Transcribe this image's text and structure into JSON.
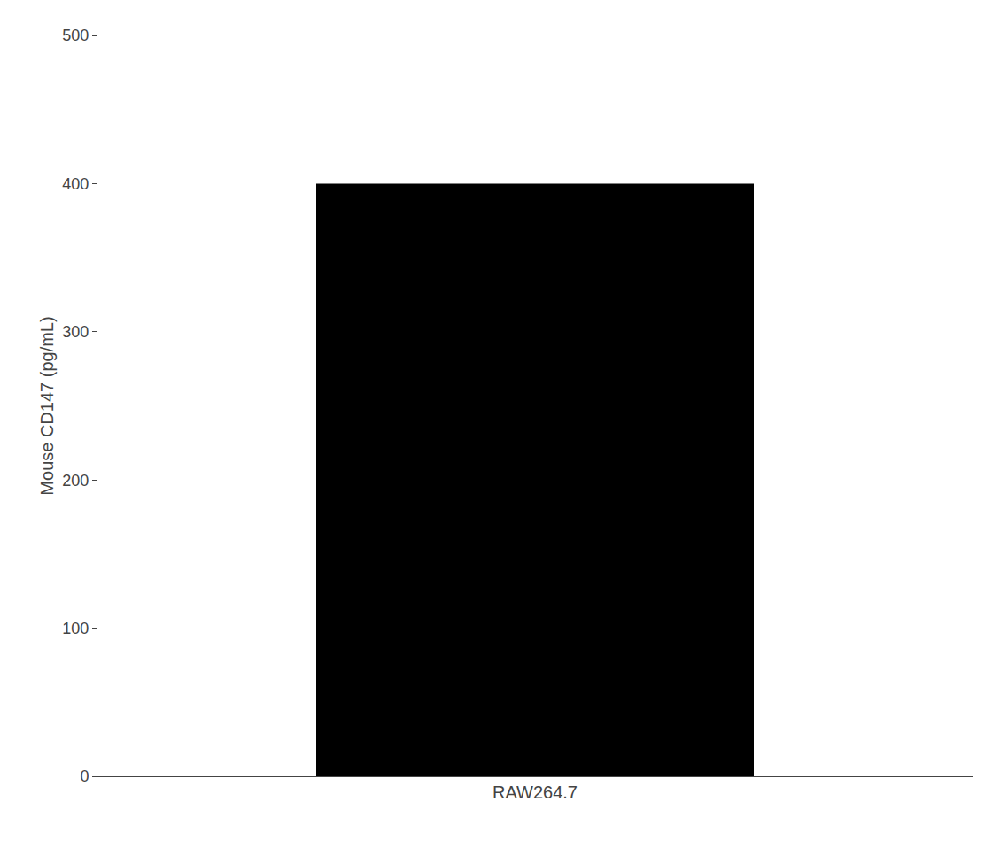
{
  "chart_data": {
    "type": "bar",
    "categories": [
      "RAW264.7"
    ],
    "values": [
      400.0
    ],
    "color": "#000000",
    "ylabel": "Mouse CD147 (pg/mL)",
    "ylim": [
      0,
      500
    ],
    "yticks": [
      0,
      100,
      200,
      300,
      400,
      500
    ],
    "grid": false
  }
}
